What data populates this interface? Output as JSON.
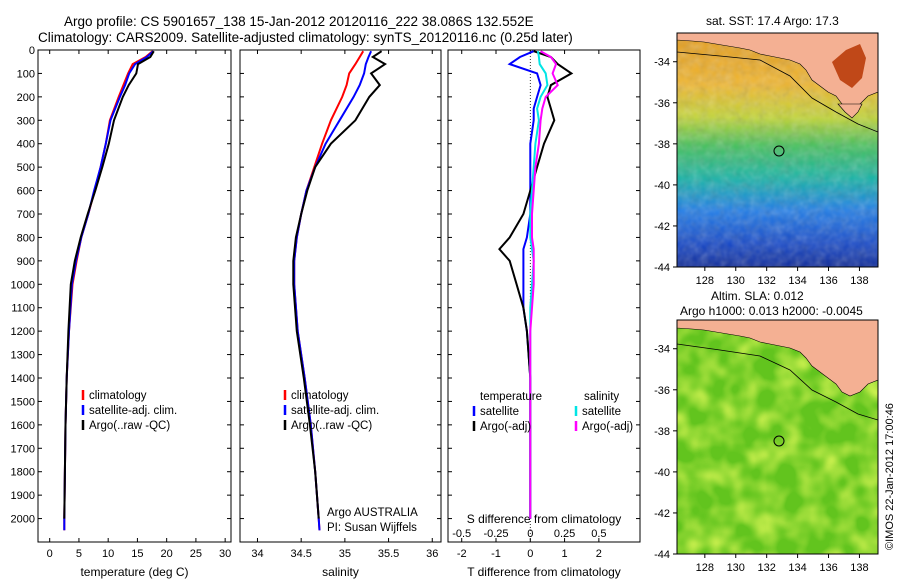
{
  "header": {
    "line1": "Argo profile: CS 5901657_138 15-Jan-2012 20120116_222 38.086S 132.552E",
    "line2": "Climatology: CARS2009. Satellite-adjusted climatology: synTS_20120116.nc (0.25d later)"
  },
  "colors": {
    "climatology": "#ff0000",
    "satellite": "#0000ff",
    "argo": "#000000",
    "sal_satellite": "#00e5e5",
    "sal_argo": "#ff00ff",
    "land": "#f4b093"
  },
  "chart_data": [
    {
      "type": "line",
      "name": "temperature-profile",
      "xlabel": "temperature (deg C)",
      "xlim": [
        -2,
        31
      ],
      "ylim": [
        2100,
        0
      ],
      "xticks": [
        0,
        5,
        10,
        15,
        20,
        25,
        30
      ],
      "yticks": [
        0,
        100,
        200,
        300,
        400,
        500,
        600,
        700,
        800,
        900,
        1000,
        1100,
        1200,
        1300,
        1400,
        1500,
        1600,
        1700,
        1800,
        1900,
        2000
      ],
      "legend": [
        "climatology",
        "satellite-adj. clim.",
        "Argo(..raw -QC)"
      ],
      "depth": [
        5,
        30,
        60,
        100,
        150,
        200,
        300,
        400,
        500,
        600,
        700,
        800,
        900,
        1000,
        1200,
        1400,
        1600,
        1800,
        2000,
        2050
      ],
      "series": [
        {
          "name": "climatology",
          "values": [
            17.6,
            16.4,
            14.2,
            13.4,
            12.6,
            11.8,
            10.3,
            9.6,
            8.7,
            7.7,
            6.6,
            5.4,
            4.6,
            3.9,
            3.3,
            2.9,
            2.7,
            2.6,
            2.5,
            2.5
          ]
        },
        {
          "name": "satellite-adj. clim.",
          "values": [
            17.7,
            16.6,
            14.6,
            13.6,
            12.9,
            12.0,
            10.4,
            9.6,
            8.7,
            7.6,
            6.6,
            5.4,
            4.5,
            3.8,
            3.3,
            2.9,
            2.7,
            2.6,
            2.5,
            2.5
          ]
        },
        {
          "name": "Argo(..raw -QC)",
          "values": [
            17.8,
            17.2,
            15.1,
            14.8,
            13.5,
            12.5,
            11.0,
            10.1,
            9.0,
            7.8,
            6.5,
            5.3,
            4.3,
            3.6,
            3.2,
            2.9,
            2.7,
            2.6,
            2.5,
            null
          ]
        }
      ]
    },
    {
      "type": "line",
      "name": "salinity-profile",
      "xlabel": "salinity",
      "xlim": [
        33.8,
        36.1
      ],
      "ylim": [
        2100,
        0
      ],
      "xticks": [
        34,
        34.5,
        35,
        35.5,
        36
      ],
      "legend": [
        "climatology",
        "satellite-adj. clim.",
        "Argo(..raw -QC)"
      ],
      "annotation": [
        "Argo AUSTRALIA",
        "PI: Susan Wijffels"
      ],
      "depth": [
        5,
        30,
        60,
        100,
        150,
        200,
        300,
        400,
        500,
        600,
        700,
        800,
        900,
        1000,
        1200,
        1400,
        1600,
        1800,
        2000,
        2050
      ],
      "series": [
        {
          "name": "climatology",
          "values": [
            35.21,
            35.17,
            35.12,
            35.05,
            35.02,
            34.97,
            34.84,
            34.74,
            34.65,
            34.56,
            34.5,
            34.45,
            34.42,
            34.42,
            34.46,
            34.54,
            34.61,
            34.66,
            34.7,
            34.71
          ]
        },
        {
          "name": "satellite-adj. clim.",
          "values": [
            35.3,
            35.27,
            35.24,
            35.22,
            35.17,
            35.1,
            34.94,
            34.78,
            34.66,
            34.56,
            34.5,
            34.45,
            34.42,
            34.42,
            34.46,
            34.54,
            34.61,
            34.66,
            34.7,
            34.71
          ]
        },
        {
          "name": "Argo(..raw -QC)",
          "values": [
            35.42,
            35.32,
            35.46,
            35.3,
            35.4,
            35.28,
            35.12,
            34.84,
            34.66,
            34.57,
            34.5,
            34.44,
            34.41,
            34.41,
            34.45,
            34.53,
            34.6,
            34.66,
            34.7,
            null
          ]
        }
      ]
    },
    {
      "type": "line",
      "name": "difference-profile",
      "xlabel": "T difference from climatology",
      "x2label": "S difference from climatology",
      "xlim": [
        -2.4,
        3.2
      ],
      "ylim": [
        2100,
        0
      ],
      "xticks": [
        -2,
        -1,
        0,
        1,
        2
      ],
      "x2ticks": [
        "-0.5",
        "-0.25",
        "0",
        "0.25",
        "0.5"
      ],
      "legend_temperature": {
        "title": "temperature",
        "items": [
          "satellite",
          "Argo(-adj)"
        ]
      },
      "legend_salinity": {
        "title": "salinity",
        "items": [
          "satellite",
          "Argo(-adj)"
        ]
      },
      "depth": [
        5,
        30,
        60,
        100,
        150,
        200,
        250,
        300,
        400,
        500,
        600,
        700,
        800,
        850,
        900,
        1000,
        1100,
        1200,
        1400,
        1600,
        1800,
        2000
      ],
      "series": [
        {
          "name": "temperature satellite",
          "values": [
            0.1,
            -0.3,
            -0.6,
            0.2,
            0.3,
            0.2,
            0.1,
            0.1,
            0.0,
            0.0,
            0.0,
            0.0,
            -0.1,
            -0.2,
            -0.2,
            -0.2,
            -0.2,
            -0.1,
            0.0,
            0.0,
            0.0,
            0.0
          ]
        },
        {
          "name": "temperature Argo(-adj)",
          "values": [
            0.1,
            0.6,
            0.8,
            1.2,
            0.6,
            0.5,
            0.6,
            0.7,
            0.4,
            0.2,
            0.0,
            -0.2,
            -0.6,
            -0.9,
            -0.6,
            -0.4,
            -0.2,
            -0.1,
            0.0,
            0.0,
            0.0,
            0.0
          ]
        },
        {
          "name": "salinity satellite",
          "values": [
            0.45,
            0.5,
            0.55,
            0.9,
            1.0,
            0.6,
            0.4,
            0.5,
            0.3,
            0.2,
            0.1,
            0.0,
            0.0,
            0.1,
            0.2,
            0.1,
            0.0,
            0.0,
            0.0,
            0.0,
            0.0,
            0.0
          ]
        },
        {
          "name": "salinity Argo(-adj)",
          "values": [
            0.6,
            1.2,
            1.5,
            1.3,
            1.6,
            0.9,
            0.7,
            0.6,
            0.5,
            0.3,
            0.2,
            0.1,
            0.1,
            0.2,
            0.2,
            0.2,
            0.1,
            0.0,
            0.0,
            0.0,
            0.0,
            0.0
          ]
        }
      ]
    },
    {
      "type": "heatmap",
      "name": "sst-map",
      "title": "sat. SST: 17.4  Argo: 17.3",
      "xlim": [
        126.2,
        139.2
      ],
      "ylim": [
        -44,
        -32.6
      ],
      "xticks": [
        128,
        130,
        132,
        134,
        136,
        138
      ],
      "yticks": [
        -34,
        -36,
        -38,
        -40,
        -42,
        -44
      ],
      "marker": {
        "lon": 132.552,
        "lat": -38.086
      }
    },
    {
      "type": "heatmap",
      "name": "sla-map",
      "title": [
        "Altim. SLA: 0.012",
        "Argo h1000: 0.013 h2000: -0.0045"
      ],
      "xlim": [
        126.2,
        139.2
      ],
      "ylim": [
        -44,
        -32.6
      ],
      "xticks": [
        128,
        130,
        132,
        134,
        136,
        138
      ],
      "yticks": [
        -34,
        -36,
        -38,
        -40,
        -42,
        -44
      ],
      "marker": {
        "lon": 132.552,
        "lat": -38.086
      }
    }
  ],
  "credit": "©IMOS 22-Jan-2012 17:00:46"
}
